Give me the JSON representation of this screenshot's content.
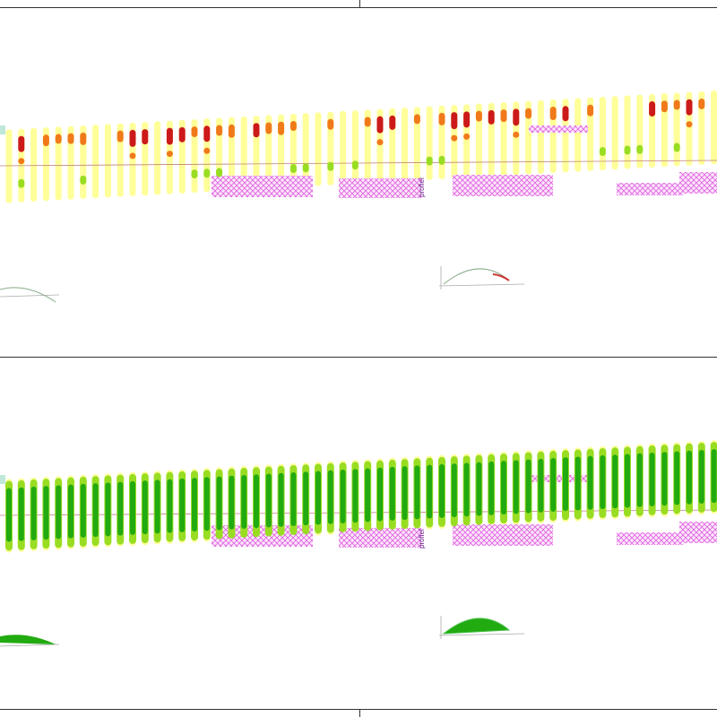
{
  "labels": {
    "profile_label": "profiel"
  },
  "colors": {
    "band": "#ffff99",
    "hatch": "#e060e0",
    "red": "#cc1a1a",
    "orange": "#f07a1a",
    "lightgreen": "#99dd22",
    "green": "#22aa11",
    "refline": "#c08080"
  },
  "panels": [
    {
      "name": "top",
      "mode": "points"
    },
    {
      "name": "bottom",
      "mode": "full"
    }
  ]
}
